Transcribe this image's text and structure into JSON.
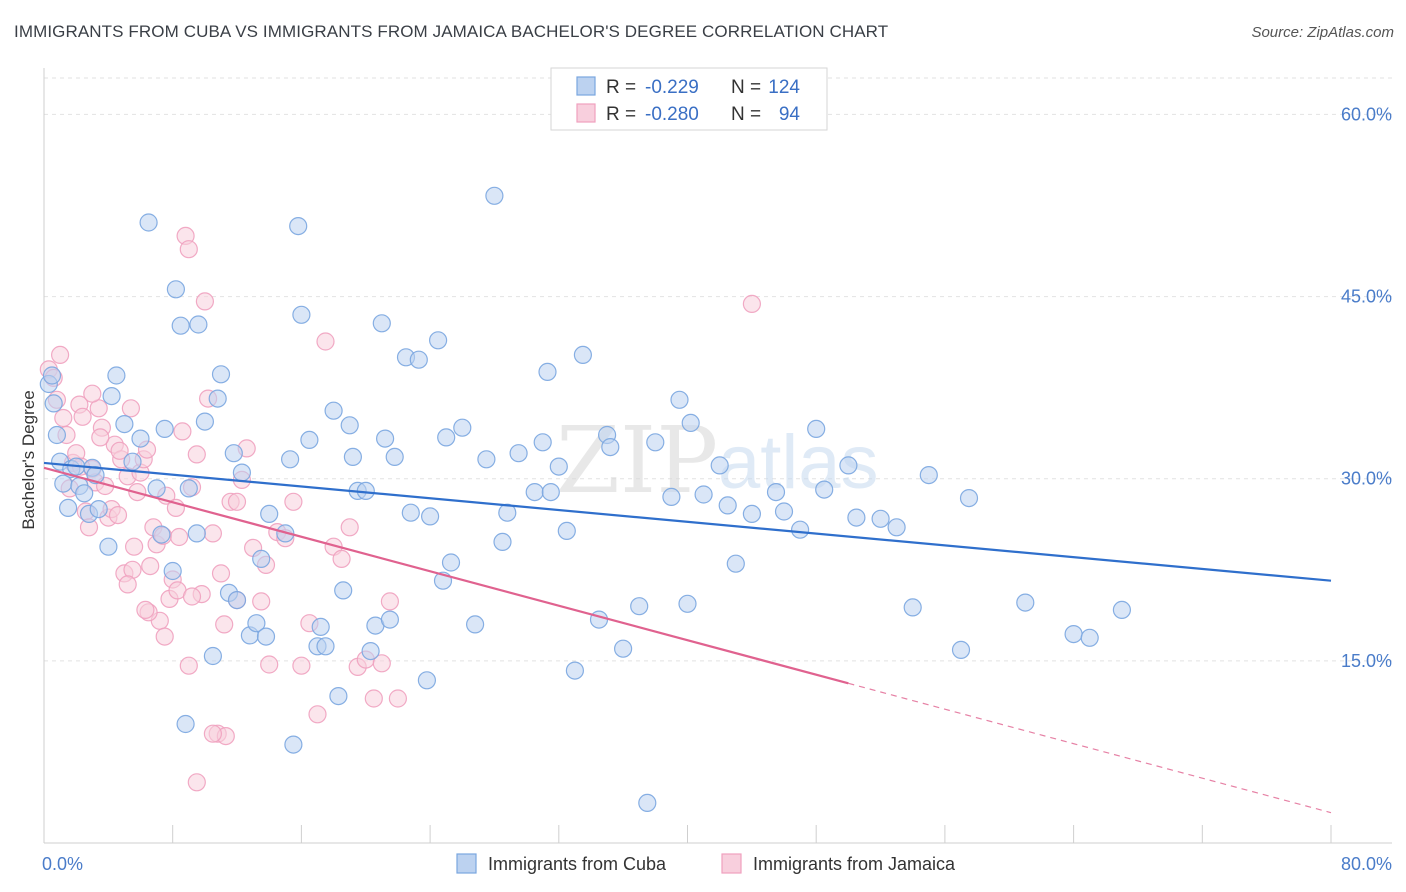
{
  "header": {
    "title": "IMMIGRANTS FROM CUBA VS IMMIGRANTS FROM JAMAICA BACHELOR'S DEGREE CORRELATION CHART",
    "source": "Source: ZipAtlas.com"
  },
  "watermark": {
    "zip": "ZIP",
    "atlas": "atlas"
  },
  "chart_data": {
    "type": "scatter",
    "xlabel": "",
    "ylabel": "Bachelor's Degree",
    "xlim": [
      0,
      80
    ],
    "ylim": [
      0,
      63
    ],
    "x_tick_labels": [
      "0.0%",
      "80.0%"
    ],
    "y_ticks": [
      15,
      30,
      45,
      60
    ],
    "y_tick_labels": [
      "15.0%",
      "30.0%",
      "45.0%",
      "60.0%"
    ],
    "grid": true,
    "legend_position": "top-center",
    "legend": [
      {
        "r_label": "R =",
        "r_value": "-0.229",
        "n_label": "N =",
        "n_value": "124"
      },
      {
        "r_label": "R =",
        "r_value": "-0.280",
        "n_label": "N =",
        "n_value": "94"
      }
    ],
    "series": [
      {
        "name": "Immigrants from Cuba",
        "color": "#7aa6e0",
        "line_color": "#2f6fcc",
        "trend": {
          "x": [
            0,
            80
          ],
          "y": [
            31.3,
            21.6
          ],
          "solid_until": 80
        },
        "points": [
          [
            0.3,
            37.8
          ],
          [
            0.5,
            38.5
          ],
          [
            0.6,
            36.2
          ],
          [
            0.8,
            33.6
          ],
          [
            1.0,
            31.4
          ],
          [
            1.2,
            29.6
          ],
          [
            1.5,
            27.6
          ],
          [
            1.7,
            30.8
          ],
          [
            2.0,
            31.0
          ],
          [
            2.2,
            29.4
          ],
          [
            2.5,
            28.8
          ],
          [
            2.8,
            27.1
          ],
          [
            3.0,
            30.9
          ],
          [
            3.2,
            30.3
          ],
          [
            3.4,
            27.5
          ],
          [
            4.0,
            24.4
          ],
          [
            4.2,
            36.8
          ],
          [
            4.5,
            38.5
          ],
          [
            5.0,
            34.5
          ],
          [
            5.5,
            31.4
          ],
          [
            6.0,
            33.3
          ],
          [
            6.5,
            51.1
          ],
          [
            7.0,
            29.2
          ],
          [
            7.3,
            25.4
          ],
          [
            7.5,
            34.1
          ],
          [
            8.0,
            22.4
          ],
          [
            8.2,
            45.6
          ],
          [
            8.5,
            42.6
          ],
          [
            8.8,
            9.8
          ],
          [
            9.0,
            29.2
          ],
          [
            9.5,
            25.5
          ],
          [
            9.6,
            42.7
          ],
          [
            10.0,
            34.7
          ],
          [
            10.5,
            15.4
          ],
          [
            10.8,
            36.6
          ],
          [
            11.0,
            38.6
          ],
          [
            11.5,
            20.6
          ],
          [
            11.8,
            32.1
          ],
          [
            12.0,
            20.0
          ],
          [
            12.3,
            30.5
          ],
          [
            12.8,
            17.1
          ],
          [
            13.2,
            18.1
          ],
          [
            13.5,
            23.4
          ],
          [
            13.8,
            17.0
          ],
          [
            14.0,
            27.1
          ],
          [
            15.0,
            25.5
          ],
          [
            15.3,
            31.6
          ],
          [
            15.5,
            8.1
          ],
          [
            15.8,
            50.8
          ],
          [
            16.0,
            43.5
          ],
          [
            16.5,
            33.2
          ],
          [
            17.0,
            16.2
          ],
          [
            17.2,
            17.8
          ],
          [
            17.5,
            16.2
          ],
          [
            18.0,
            35.6
          ],
          [
            18.3,
            12.1
          ],
          [
            18.6,
            20.8
          ],
          [
            19.0,
            34.4
          ],
          [
            19.2,
            31.8
          ],
          [
            19.5,
            29.0
          ],
          [
            20.0,
            29.0
          ],
          [
            20.3,
            15.8
          ],
          [
            20.6,
            17.9
          ],
          [
            21.0,
            42.8
          ],
          [
            21.2,
            33.3
          ],
          [
            21.5,
            18.4
          ],
          [
            21.8,
            31.8
          ],
          [
            22.5,
            40.0
          ],
          [
            22.8,
            27.2
          ],
          [
            23.3,
            39.8
          ],
          [
            23.8,
            13.4
          ],
          [
            24.0,
            26.9
          ],
          [
            24.5,
            41.4
          ],
          [
            24.8,
            21.6
          ],
          [
            25.0,
            33.4
          ],
          [
            25.3,
            23.1
          ],
          [
            26.0,
            34.2
          ],
          [
            26.8,
            18.0
          ],
          [
            27.5,
            31.6
          ],
          [
            28.0,
            53.3
          ],
          [
            28.5,
            24.8
          ],
          [
            28.8,
            27.2
          ],
          [
            29.5,
            32.1
          ],
          [
            30.5,
            28.9
          ],
          [
            31.0,
            33.0
          ],
          [
            31.3,
            38.8
          ],
          [
            31.5,
            28.9
          ],
          [
            32.0,
            31.0
          ],
          [
            32.5,
            25.7
          ],
          [
            33.0,
            14.2
          ],
          [
            33.5,
            40.2
          ],
          [
            34.5,
            18.4
          ],
          [
            35.0,
            33.6
          ],
          [
            35.2,
            32.6
          ],
          [
            36.0,
            16.0
          ],
          [
            37.0,
            19.5
          ],
          [
            37.5,
            3.3
          ],
          [
            38.0,
            33.0
          ],
          [
            39.0,
            28.5
          ],
          [
            39.5,
            36.5
          ],
          [
            40.0,
            19.7
          ],
          [
            40.2,
            34.6
          ],
          [
            41.0,
            28.7
          ],
          [
            42.0,
            31.1
          ],
          [
            42.5,
            27.8
          ],
          [
            43.0,
            23.0
          ],
          [
            44.0,
            27.1
          ],
          [
            45.5,
            28.9
          ],
          [
            46.0,
            27.3
          ],
          [
            47.0,
            25.8
          ],
          [
            48.0,
            34.1
          ],
          [
            48.5,
            29.1
          ],
          [
            50.0,
            31.1
          ],
          [
            50.5,
            26.8
          ],
          [
            52.0,
            26.7
          ],
          [
            53.0,
            26.0
          ],
          [
            54.0,
            19.4
          ],
          [
            55.0,
            30.3
          ],
          [
            57.0,
            15.9
          ],
          [
            57.5,
            28.4
          ],
          [
            61.0,
            19.8
          ],
          [
            64.0,
            17.2
          ],
          [
            65.0,
            16.9
          ],
          [
            67.0,
            19.2
          ]
        ]
      },
      {
        "name": "Immigrants from Jamaica",
        "color": "#f0a1bf",
        "line_color": "#e0628f",
        "trend": {
          "x": [
            0,
            80
          ],
          "y": [
            30.9,
            2.5
          ],
          "solid_until": 50
        },
        "points": [
          [
            0.3,
            39.0
          ],
          [
            0.6,
            38.3
          ],
          [
            0.8,
            36.5
          ],
          [
            1.0,
            40.2
          ],
          [
            1.2,
            35.0
          ],
          [
            1.4,
            33.6
          ],
          [
            1.6,
            29.2
          ],
          [
            1.8,
            31.3
          ],
          [
            2.0,
            32.1
          ],
          [
            2.2,
            36.1
          ],
          [
            2.4,
            35.1
          ],
          [
            2.6,
            27.3
          ],
          [
            2.8,
            26.0
          ],
          [
            3.0,
            30.8
          ],
          [
            3.2,
            29.7
          ],
          [
            3.4,
            35.8
          ],
          [
            3.6,
            34.2
          ],
          [
            3.8,
            29.4
          ],
          [
            4.0,
            26.8
          ],
          [
            4.2,
            27.5
          ],
          [
            4.4,
            32.8
          ],
          [
            4.6,
            27.0
          ],
          [
            4.8,
            31.6
          ],
          [
            5.0,
            22.2
          ],
          [
            5.2,
            30.2
          ],
          [
            5.4,
            35.8
          ],
          [
            5.6,
            24.4
          ],
          [
            5.8,
            28.9
          ],
          [
            6.0,
            30.5
          ],
          [
            6.2,
            31.6
          ],
          [
            6.4,
            32.4
          ],
          [
            6.6,
            22.8
          ],
          [
            6.8,
            26.0
          ],
          [
            7.0,
            24.6
          ],
          [
            7.2,
            18.3
          ],
          [
            7.4,
            25.3
          ],
          [
            7.6,
            28.6
          ],
          [
            7.8,
            20.1
          ],
          [
            8.0,
            21.7
          ],
          [
            8.2,
            27.6
          ],
          [
            8.4,
            25.2
          ],
          [
            8.6,
            33.9
          ],
          [
            8.8,
            50.0
          ],
          [
            9.0,
            48.9
          ],
          [
            9.2,
            29.3
          ],
          [
            9.5,
            32.0
          ],
          [
            9.8,
            20.5
          ],
          [
            10.0,
            44.6
          ],
          [
            10.2,
            36.6
          ],
          [
            10.5,
            25.5
          ],
          [
            10.8,
            9.0
          ],
          [
            11.0,
            22.2
          ],
          [
            11.3,
            8.8
          ],
          [
            11.6,
            28.1
          ],
          [
            12.0,
            28.1
          ],
          [
            12.3,
            29.9
          ],
          [
            12.6,
            32.5
          ],
          [
            13.0,
            24.3
          ],
          [
            13.5,
            19.9
          ],
          [
            14.0,
            14.7
          ],
          [
            14.5,
            25.6
          ],
          [
            15.0,
            25.1
          ],
          [
            15.5,
            28.1
          ],
          [
            16.0,
            14.6
          ],
          [
            16.5,
            18.1
          ],
          [
            17.0,
            10.6
          ],
          [
            17.5,
            41.3
          ],
          [
            18.0,
            24.4
          ],
          [
            18.5,
            23.4
          ],
          [
            19.0,
            26.0
          ],
          [
            19.5,
            14.5
          ],
          [
            20.0,
            15.1
          ],
          [
            20.5,
            11.9
          ],
          [
            21.0,
            14.8
          ],
          [
            21.5,
            19.9
          ],
          [
            22.0,
            11.9
          ],
          [
            44.0,
            44.4
          ],
          [
            3.0,
            37.0
          ],
          [
            5.5,
            22.5
          ],
          [
            6.5,
            19.0
          ],
          [
            7.5,
            17.0
          ],
          [
            9.0,
            14.6
          ],
          [
            9.5,
            5.0
          ],
          [
            10.5,
            9.0
          ],
          [
            11.2,
            18.0
          ],
          [
            12.0,
            20.0
          ],
          [
            3.5,
            33.4
          ],
          [
            2.3,
            31.0
          ],
          [
            4.7,
            32.3
          ],
          [
            5.2,
            21.3
          ],
          [
            6.3,
            19.2
          ],
          [
            8.3,
            20.8
          ],
          [
            9.2,
            20.3
          ],
          [
            13.8,
            22.9
          ]
        ]
      }
    ]
  },
  "bottom_legend": [
    {
      "label": "Immigrants from Cuba"
    },
    {
      "label": "Immigrants from Jamaica"
    }
  ]
}
